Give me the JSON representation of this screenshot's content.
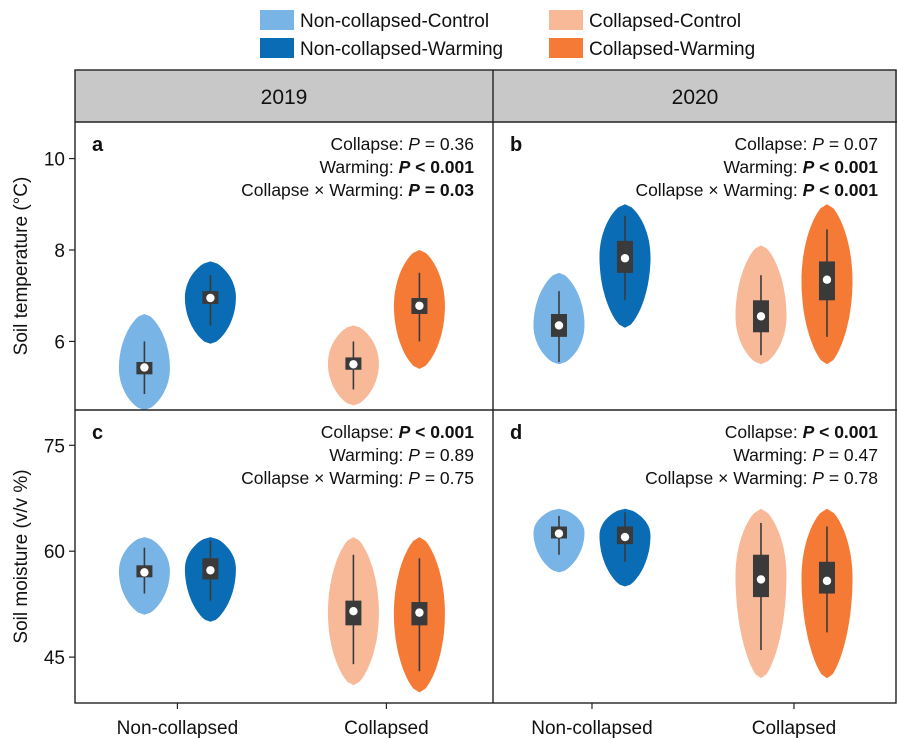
{
  "colors": {
    "non_collapsed_control": "#79b4e6",
    "non_collapsed_warming": "#0a6cb4",
    "collapsed_control": "#f8b999",
    "collapsed_warming": "#f47a36",
    "box": "#3a3a3a",
    "median": "#ffffff",
    "strip": "#c8c8c8"
  },
  "legend": {
    "items": [
      {
        "label": "Non-collapsed-Control",
        "color": "#79b4e6"
      },
      {
        "label": "Non-collapsed-Warming",
        "color": "#0a6cb4"
      },
      {
        "label": "Collapsed-Control",
        "color": "#f8b999"
      },
      {
        "label": "Collapsed-Warming",
        "color": "#f47a36"
      }
    ]
  },
  "columns": [
    "2019",
    "2020"
  ],
  "x_categories": [
    "Non-collapsed",
    "Collapsed"
  ],
  "rows": [
    {
      "ylabel": "Soil temperature (°C)",
      "ylim": [
        4.5,
        10.8
      ],
      "yticks": [
        "6",
        "8",
        "10"
      ],
      "ytick_values": [
        6,
        8,
        10
      ]
    },
    {
      "ylabel": "Soil moisture (v/v %)",
      "ylim": [
        38.5,
        80
      ],
      "yticks": [
        "45",
        "60",
        "75"
      ],
      "ytick_values": [
        45,
        60,
        75
      ]
    }
  ],
  "chart_data": [
    {
      "type": "violin",
      "panel": "a",
      "year": "2019",
      "ylabel": "Soil temperature (°C)",
      "ylim": [
        4.5,
        10.8
      ],
      "stats": [
        {
          "prefix": "Collapse: ",
          "p": "P",
          "rest": " = 0.36",
          "bold": false
        },
        {
          "prefix": "Warming: ",
          "p": "P",
          "rest": " < 0.001",
          "bold": true
        },
        {
          "prefix": "Collapse × Warming: ",
          "p": "P",
          "rest": " = 0.03",
          "bold": true
        }
      ],
      "series": [
        {
          "name": "Non-collapsed-Control",
          "category": "Non-collapsed",
          "median": 5.43,
          "q1": 5.28,
          "q3": 5.55,
          "whisker_low": 4.85,
          "whisker_high": 6.0,
          "min": 4.5,
          "max": 6.6
        },
        {
          "name": "Non-collapsed-Warming",
          "category": "Non-collapsed",
          "median": 6.95,
          "q1": 6.82,
          "q3": 7.1,
          "whisker_low": 6.35,
          "whisker_high": 7.45,
          "min": 5.95,
          "max": 7.75
        },
        {
          "name": "Collapsed-Control",
          "category": "Collapsed",
          "median": 5.5,
          "q1": 5.38,
          "q3": 5.65,
          "whisker_low": 4.95,
          "whisker_high": 6.0,
          "min": 4.6,
          "max": 6.35
        },
        {
          "name": "Collapsed-Warming",
          "category": "Collapsed",
          "median": 6.78,
          "q1": 6.6,
          "q3": 6.95,
          "whisker_low": 6.0,
          "whisker_high": 7.5,
          "min": 5.4,
          "max": 8.0
        }
      ]
    },
    {
      "type": "violin",
      "panel": "b",
      "year": "2020",
      "ylabel": "Soil temperature (°C)",
      "ylim": [
        4.5,
        10.8
      ],
      "stats": [
        {
          "prefix": "Collapse: ",
          "p": "P",
          "rest": " = 0.07",
          "bold": false
        },
        {
          "prefix": "Warming: ",
          "p": "P",
          "rest": " < 0.001",
          "bold": true
        },
        {
          "prefix": "Collapse × Warming: ",
          "p": "P",
          "rest": " < 0.001",
          "bold": true
        }
      ],
      "series": [
        {
          "name": "Non-collapsed-Control",
          "category": "Non-collapsed",
          "median": 6.35,
          "q1": 6.1,
          "q3": 6.6,
          "whisker_low": 5.55,
          "whisker_high": 7.1,
          "min": 5.5,
          "max": 7.5
        },
        {
          "name": "Non-collapsed-Warming",
          "category": "Non-collapsed",
          "median": 7.82,
          "q1": 7.5,
          "q3": 8.2,
          "whisker_low": 6.9,
          "whisker_high": 8.75,
          "min": 6.3,
          "max": 9.0
        },
        {
          "name": "Collapsed-Control",
          "category": "Collapsed",
          "median": 6.55,
          "q1": 6.2,
          "q3": 6.9,
          "whisker_low": 5.7,
          "whisker_high": 7.45,
          "min": 5.5,
          "max": 8.1
        },
        {
          "name": "Collapsed-Warming",
          "category": "Collapsed",
          "median": 7.35,
          "q1": 6.9,
          "q3": 7.75,
          "whisker_low": 6.1,
          "whisker_high": 8.45,
          "min": 5.5,
          "max": 9.0
        }
      ]
    },
    {
      "type": "violin",
      "panel": "c",
      "year": "2019",
      "ylabel": "Soil moisture (v/v %)",
      "ylim": [
        38.5,
        80
      ],
      "stats": [
        {
          "prefix": "Collapse: ",
          "p": "P",
          "rest": " < 0.001",
          "bold": true
        },
        {
          "prefix": "Warming: ",
          "p": "P",
          "rest": " = 0.89",
          "bold": false
        },
        {
          "prefix": "Collapse × Warming: ",
          "p": "P",
          "rest": " = 0.75",
          "bold": false
        }
      ],
      "series": [
        {
          "name": "Non-collapsed-Control",
          "category": "Non-collapsed",
          "median": 57.0,
          "q1": 56.3,
          "q3": 58.0,
          "whisker_low": 54.0,
          "whisker_high": 60.5,
          "min": 51.0,
          "max": 62.0
        },
        {
          "name": "Non-collapsed-Warming",
          "category": "Non-collapsed",
          "median": 57.3,
          "q1": 56.0,
          "q3": 59.0,
          "whisker_low": 53.0,
          "whisker_high": 61.5,
          "min": 50.0,
          "max": 62.0
        },
        {
          "name": "Collapsed-Control",
          "category": "Collapsed",
          "median": 51.5,
          "q1": 49.5,
          "q3": 53.0,
          "whisker_low": 44.0,
          "whisker_high": 59.5,
          "min": 41.0,
          "max": 62.0
        },
        {
          "name": "Collapsed-Warming",
          "category": "Collapsed",
          "median": 51.3,
          "q1": 49.5,
          "q3": 52.8,
          "whisker_low": 43.0,
          "whisker_high": 59.0,
          "min": 40.0,
          "max": 62.0
        }
      ]
    },
    {
      "type": "violin",
      "panel": "d",
      "year": "2020",
      "ylabel": "Soil moisture (v/v %)",
      "ylim": [
        38.5,
        80
      ],
      "stats": [
        {
          "prefix": "Collapse: ",
          "p": "P",
          "rest": " < 0.001",
          "bold": true
        },
        {
          "prefix": "Warming: ",
          "p": "P",
          "rest": " = 0.47",
          "bold": false
        },
        {
          "prefix": "Collapse × Warming: ",
          "p": "P",
          "rest": " = 0.78",
          "bold": false
        }
      ],
      "series": [
        {
          "name": "Non-collapsed-Control",
          "category": "Non-collapsed",
          "median": 62.5,
          "q1": 61.8,
          "q3": 63.5,
          "whisker_low": 59.5,
          "whisker_high": 65.0,
          "min": 57.0,
          "max": 66.0
        },
        {
          "name": "Non-collapsed-Warming",
          "category": "Non-collapsed",
          "median": 62.0,
          "q1": 61.0,
          "q3": 63.5,
          "whisker_low": 58.5,
          "whisker_high": 65.5,
          "min": 55.0,
          "max": 66.0
        },
        {
          "name": "Collapsed-Control",
          "category": "Collapsed",
          "median": 56.0,
          "q1": 53.5,
          "q3": 59.5,
          "whisker_low": 46.0,
          "whisker_high": 64.0,
          "min": 42.0,
          "max": 66.0
        },
        {
          "name": "Collapsed-Warming",
          "category": "Collapsed",
          "median": 55.8,
          "q1": 54.0,
          "q3": 58.5,
          "whisker_low": 48.5,
          "whisker_high": 63.5,
          "min": 42.0,
          "max": 66.0
        }
      ]
    }
  ]
}
